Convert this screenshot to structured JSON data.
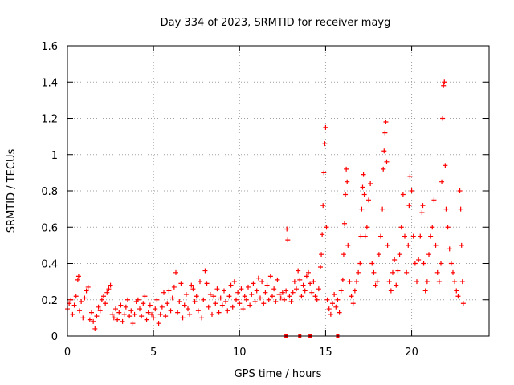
{
  "chart_data": {
    "type": "scatter",
    "title": "Day 334 of 2023, SRMTID for receiver mayg",
    "xlabel": "GPS time / hours",
    "ylabel": "SRMTID / TECUs",
    "xlim": [
      0,
      24.5
    ],
    "ylim": [
      0,
      1.6
    ],
    "x_ticks": [
      0,
      5,
      10,
      15,
      20
    ],
    "x_tick_labels": [
      "0",
      "5",
      "10",
      "15",
      "20"
    ],
    "y_ticks": [
      0,
      0.2,
      0.4,
      0.6,
      0.8,
      1.0,
      1.2,
      1.4,
      1.6
    ],
    "y_tick_labels": [
      "0",
      "0.2",
      "0.4",
      "0.6",
      "0.8",
      "1",
      "1.2",
      "1.4",
      "1.6"
    ],
    "grid": true,
    "marker": "+",
    "color": "#ff0000",
    "series": [
      {
        "name": "SRMTID",
        "points": [
          [
            0.0,
            0.15
          ],
          [
            0.1,
            0.18
          ],
          [
            0.2,
            0.2
          ],
          [
            0.3,
            0.12
          ],
          [
            0.4,
            0.17
          ],
          [
            0.5,
            0.22
          ],
          [
            0.6,
            0.31
          ],
          [
            0.65,
            0.33
          ],
          [
            0.7,
            0.14
          ],
          [
            0.8,
            0.19
          ],
          [
            0.9,
            0.1
          ],
          [
            1.0,
            0.21
          ],
          [
            1.1,
            0.25
          ],
          [
            1.2,
            0.27
          ],
          [
            1.3,
            0.09
          ],
          [
            1.4,
            0.13
          ],
          [
            1.5,
            0.08
          ],
          [
            1.6,
            0.04
          ],
          [
            1.7,
            0.11
          ],
          [
            1.8,
            0.16
          ],
          [
            1.9,
            0.14
          ],
          [
            2.0,
            0.2
          ],
          [
            2.1,
            0.22
          ],
          [
            2.2,
            0.18
          ],
          [
            2.3,
            0.24
          ],
          [
            2.4,
            0.26
          ],
          [
            2.5,
            0.28
          ],
          [
            2.6,
            0.12
          ],
          [
            2.7,
            0.1
          ],
          [
            2.8,
            0.15
          ],
          [
            2.9,
            0.09
          ],
          [
            3.0,
            0.13
          ],
          [
            3.1,
            0.17
          ],
          [
            3.2,
            0.08
          ],
          [
            3.3,
            0.12
          ],
          [
            3.4,
            0.16
          ],
          [
            3.5,
            0.2
          ],
          [
            3.6,
            0.11
          ],
          [
            3.7,
            0.14
          ],
          [
            3.8,
            0.07
          ],
          [
            3.9,
            0.12
          ],
          [
            4.0,
            0.19
          ],
          [
            4.1,
            0.2
          ],
          [
            4.2,
            0.15
          ],
          [
            4.3,
            0.11
          ],
          [
            4.4,
            0.18
          ],
          [
            4.5,
            0.22
          ],
          [
            4.6,
            0.09
          ],
          [
            4.7,
            0.13
          ],
          [
            4.8,
            0.17
          ],
          [
            4.9,
            0.12
          ],
          [
            5.0,
            0.1
          ],
          [
            5.1,
            0.15
          ],
          [
            5.2,
            0.2
          ],
          [
            5.3,
            0.07
          ],
          [
            5.4,
            0.12
          ],
          [
            5.5,
            0.16
          ],
          [
            5.6,
            0.24
          ],
          [
            5.7,
            0.11
          ],
          [
            5.8,
            0.18
          ],
          [
            5.9,
            0.25
          ],
          [
            6.0,
            0.14
          ],
          [
            6.1,
            0.21
          ],
          [
            6.2,
            0.27
          ],
          [
            6.3,
            0.35
          ],
          [
            6.4,
            0.13
          ],
          [
            6.5,
            0.19
          ],
          [
            6.6,
            0.29
          ],
          [
            6.7,
            0.1
          ],
          [
            6.8,
            0.17
          ],
          [
            6.9,
            0.23
          ],
          [
            7.0,
            0.15
          ],
          [
            7.1,
            0.12
          ],
          [
            7.2,
            0.28
          ],
          [
            7.3,
            0.26
          ],
          [
            7.4,
            0.19
          ],
          [
            7.5,
            0.22
          ],
          [
            7.6,
            0.14
          ],
          [
            7.7,
            0.3
          ],
          [
            7.8,
            0.1
          ],
          [
            7.9,
            0.2
          ],
          [
            8.0,
            0.36
          ],
          [
            8.1,
            0.29
          ],
          [
            8.2,
            0.16
          ],
          [
            8.3,
            0.23
          ],
          [
            8.4,
            0.12
          ],
          [
            8.5,
            0.22
          ],
          [
            8.6,
            0.18
          ],
          [
            8.7,
            0.26
          ],
          [
            8.8,
            0.13
          ],
          [
            8.9,
            0.21
          ],
          [
            9.0,
            0.17
          ],
          [
            9.1,
            0.25
          ],
          [
            9.2,
            0.19
          ],
          [
            9.3,
            0.14
          ],
          [
            9.4,
            0.22
          ],
          [
            9.5,
            0.28
          ],
          [
            9.6,
            0.16
          ],
          [
            9.7,
            0.3
          ],
          [
            9.8,
            0.2
          ],
          [
            9.9,
            0.24
          ],
          [
            10.0,
            0.18
          ],
          [
            10.1,
            0.26
          ],
          [
            10.2,
            0.15
          ],
          [
            10.3,
            0.22
          ],
          [
            10.4,
            0.2
          ],
          [
            10.5,
            0.27
          ],
          [
            10.6,
            0.17
          ],
          [
            10.7,
            0.23
          ],
          [
            10.8,
            0.29
          ],
          [
            10.9,
            0.19
          ],
          [
            11.0,
            0.25
          ],
          [
            11.1,
            0.32
          ],
          [
            11.2,
            0.21
          ],
          [
            11.3,
            0.3
          ],
          [
            11.4,
            0.18
          ],
          [
            11.5,
            0.24
          ],
          [
            11.6,
            0.28
          ],
          [
            11.7,
            0.2
          ],
          [
            11.8,
            0.33
          ],
          [
            11.9,
            0.22
          ],
          [
            12.0,
            0.26
          ],
          [
            12.1,
            0.19
          ],
          [
            12.2,
            0.31
          ],
          [
            12.3,
            0.23
          ],
          [
            12.4,
            0.21
          ],
          [
            12.5,
            0.24
          ],
          [
            12.6,
            0.2
          ],
          [
            12.7,
            0.25
          ],
          [
            12.75,
            0.59
          ],
          [
            12.8,
            0.53
          ],
          [
            12.9,
            0.22
          ],
          [
            13.0,
            0.19
          ],
          [
            13.1,
            0.24
          ],
          [
            13.2,
            0.3
          ],
          [
            13.3,
            0.26
          ],
          [
            13.4,
            0.36
          ],
          [
            13.5,
            0.31
          ],
          [
            13.6,
            0.22
          ],
          [
            13.7,
            0.28
          ],
          [
            13.8,
            0.25
          ],
          [
            13.9,
            0.33
          ],
          [
            14.0,
            0.35
          ],
          [
            14.1,
            0.29
          ],
          [
            14.2,
            0.24
          ],
          [
            14.3,
            0.3
          ],
          [
            14.4,
            0.22
          ],
          [
            14.5,
            0.2
          ],
          [
            14.6,
            0.26
          ],
          [
            14.7,
            0.38
          ],
          [
            14.75,
            0.45
          ],
          [
            14.8,
            0.56
          ],
          [
            14.85,
            0.72
          ],
          [
            14.9,
            0.9
          ],
          [
            14.95,
            1.06
          ],
          [
            15.0,
            1.15
          ],
          [
            15.05,
            0.6
          ],
          [
            15.1,
            0.2
          ],
          [
            15.2,
            0.15
          ],
          [
            15.3,
            0.12
          ],
          [
            15.4,
            0.18
          ],
          [
            15.5,
            0.23
          ],
          [
            15.6,
            0.16
          ],
          [
            15.7,
            0.2
          ],
          [
            15.8,
            0.13
          ],
          [
            15.9,
            0.25
          ],
          [
            16.0,
            0.31
          ],
          [
            16.05,
            0.45
          ],
          [
            16.1,
            0.62
          ],
          [
            16.15,
            0.78
          ],
          [
            16.2,
            0.92
          ],
          [
            16.25,
            0.85
          ],
          [
            16.3,
            0.5
          ],
          [
            16.4,
            0.3
          ],
          [
            16.5,
            0.22
          ],
          [
            16.6,
            0.18
          ],
          [
            16.7,
            0.25
          ],
          [
            16.8,
            0.3
          ],
          [
            16.9,
            0.35
          ],
          [
            17.0,
            0.4
          ],
          [
            17.05,
            0.55
          ],
          [
            17.1,
            0.7
          ],
          [
            17.15,
            0.82
          ],
          [
            17.2,
            0.89
          ],
          [
            17.25,
            0.78
          ],
          [
            17.3,
            0.55
          ],
          [
            17.4,
            0.6
          ],
          [
            17.5,
            0.75
          ],
          [
            17.6,
            0.84
          ],
          [
            17.7,
            0.4
          ],
          [
            17.8,
            0.35
          ],
          [
            17.9,
            0.28
          ],
          [
            18.0,
            0.3
          ],
          [
            18.1,
            0.45
          ],
          [
            18.2,
            0.55
          ],
          [
            18.3,
            0.7
          ],
          [
            18.35,
            0.92
          ],
          [
            18.4,
            1.02
          ],
          [
            18.45,
            1.12
          ],
          [
            18.5,
            1.18
          ],
          [
            18.55,
            0.96
          ],
          [
            18.6,
            0.5
          ],
          [
            18.7,
            0.3
          ],
          [
            18.8,
            0.25
          ],
          [
            18.9,
            0.35
          ],
          [
            19.0,
            0.42
          ],
          [
            19.1,
            0.28
          ],
          [
            19.2,
            0.36
          ],
          [
            19.3,
            0.45
          ],
          [
            19.4,
            0.6
          ],
          [
            19.5,
            0.78
          ],
          [
            19.6,
            0.55
          ],
          [
            19.7,
            0.35
          ],
          [
            19.8,
            0.5
          ],
          [
            19.85,
            0.72
          ],
          [
            19.9,
            0.88
          ],
          [
            20.0,
            0.8
          ],
          [
            20.1,
            0.55
          ],
          [
            20.2,
            0.4
          ],
          [
            20.3,
            0.3
          ],
          [
            20.4,
            0.42
          ],
          [
            20.5,
            0.55
          ],
          [
            20.6,
            0.68
          ],
          [
            20.65,
            0.72
          ],
          [
            20.7,
            0.4
          ],
          [
            20.8,
            0.25
          ],
          [
            20.9,
            0.3
          ],
          [
            21.0,
            0.45
          ],
          [
            21.1,
            0.55
          ],
          [
            21.2,
            0.6
          ],
          [
            21.3,
            0.75
          ],
          [
            21.4,
            0.5
          ],
          [
            21.5,
            0.35
          ],
          [
            21.6,
            0.3
          ],
          [
            21.7,
            0.4
          ],
          [
            21.75,
            0.85
          ],
          [
            21.8,
            1.2
          ],
          [
            21.85,
            1.38
          ],
          [
            21.9,
            1.4
          ],
          [
            21.95,
            0.94
          ],
          [
            22.0,
            0.7
          ],
          [
            22.1,
            0.6
          ],
          [
            22.2,
            0.48
          ],
          [
            22.3,
            0.4
          ],
          [
            22.4,
            0.35
          ],
          [
            22.5,
            0.3
          ],
          [
            22.6,
            0.25
          ],
          [
            22.7,
            0.22
          ],
          [
            22.8,
            0.8
          ],
          [
            22.85,
            0.7
          ],
          [
            22.9,
            0.5
          ],
          [
            22.95,
            0.3
          ],
          [
            23.0,
            0.18
          ]
        ]
      }
    ],
    "baseline_markers": [
      12.7,
      13.5,
      14.1,
      15.7
    ]
  }
}
